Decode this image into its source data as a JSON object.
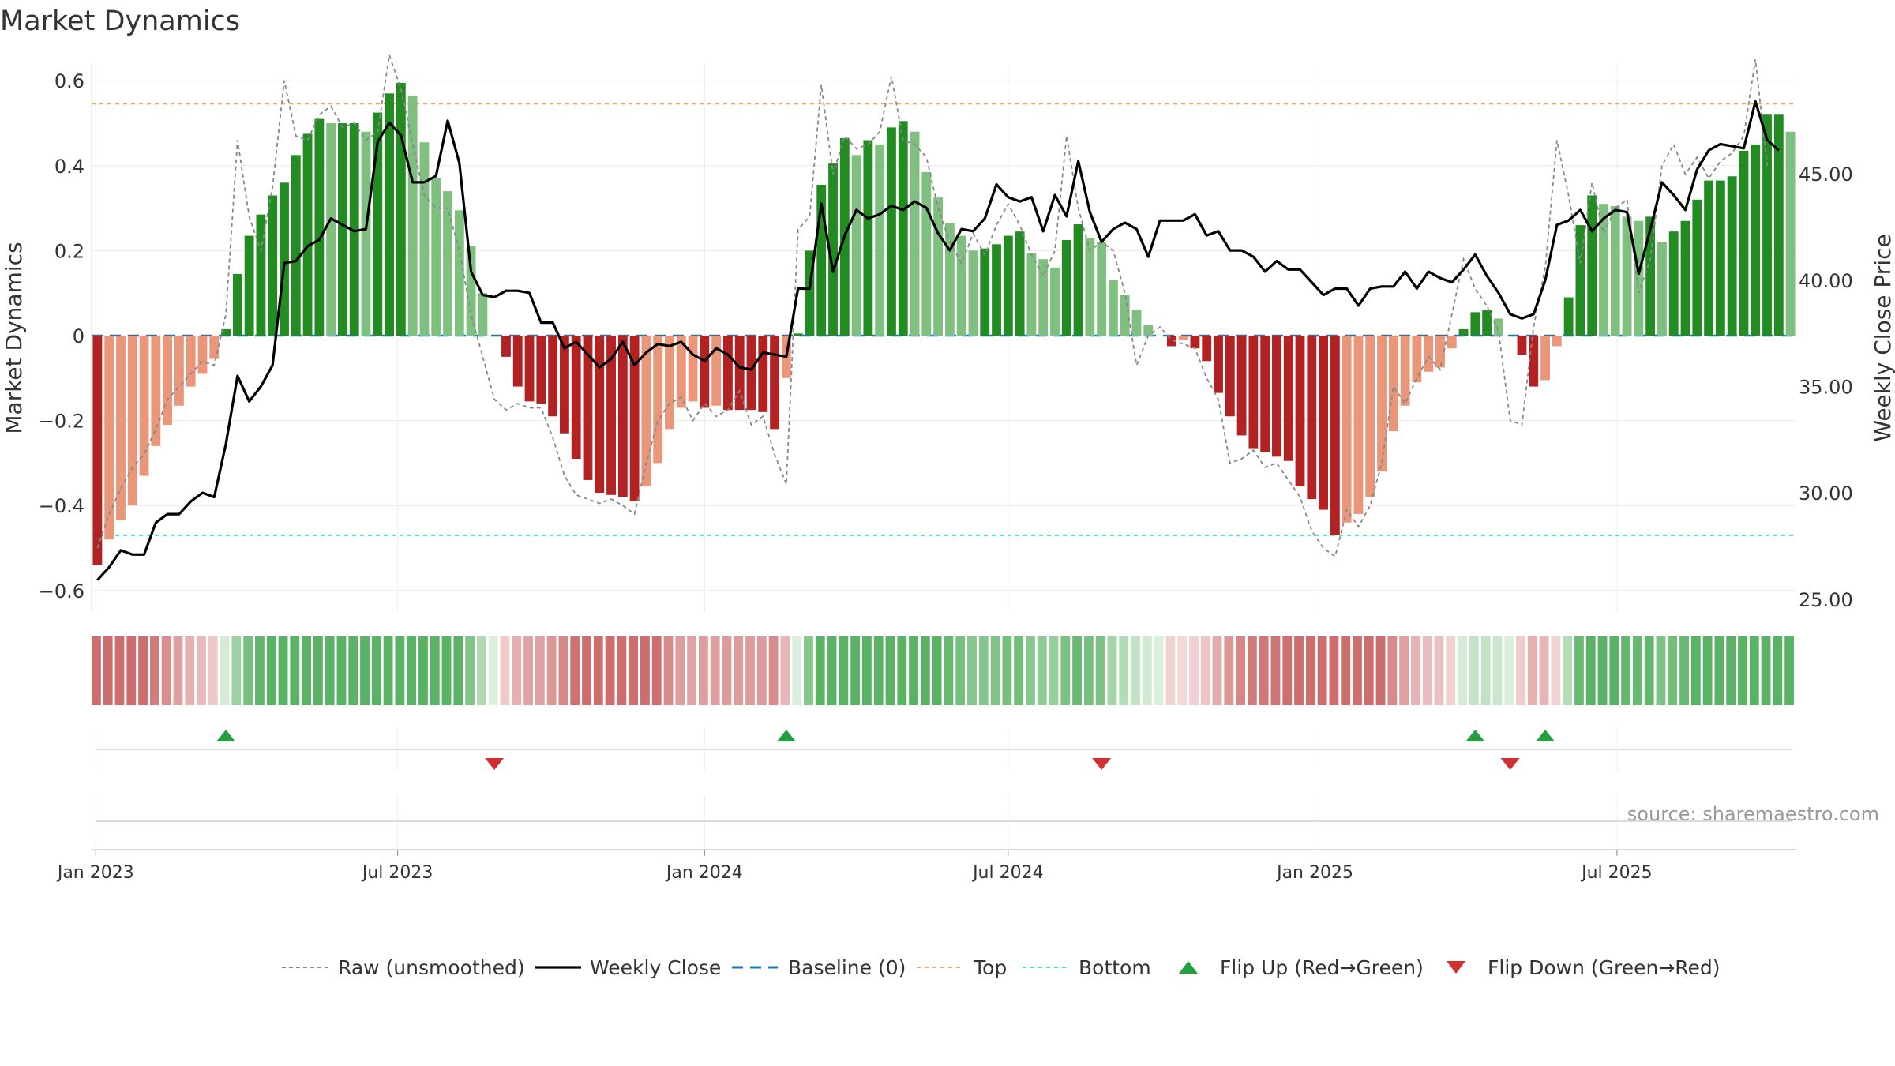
{
  "title": "Market Dynamics",
  "source": "source: sharemaestro.com",
  "chart_data": {
    "type": "bar+line",
    "title": "Market Dynamics",
    "ylabel_left": "Market Dynamics",
    "ylabel_right": "Weekly Close Price",
    "ylim_left": [
      -0.64,
      0.64
    ],
    "ylim_right": [
      24.4,
      50.2
    ],
    "yticks_left": [
      {
        "v": 0.6,
        "label": "0.6"
      },
      {
        "v": 0.4,
        "label": "0.4"
      },
      {
        "v": 0.2,
        "label": "0.2"
      },
      {
        "v": 0,
        "label": "0"
      },
      {
        "v": -0.2,
        "label": "−0.2"
      },
      {
        "v": -0.4,
        "label": "−0.4"
      },
      {
        "v": -0.6,
        "label": "−0.6"
      }
    ],
    "yticks_right": [
      {
        "v": 45,
        "label": "45.00"
      },
      {
        "v": 40,
        "label": "40.00"
      },
      {
        "v": 35,
        "label": "35.00"
      },
      {
        "v": 30,
        "label": "30.00"
      },
      {
        "v": 25,
        "label": "25.00"
      }
    ],
    "x_start": "2023-01-02",
    "x_ticks": [
      {
        "date": "2023-01-01",
        "label": "Jan 2023"
      },
      {
        "date": "2023-07-01",
        "label": "Jul 2023"
      },
      {
        "date": "2024-01-01",
        "label": "Jan 2024"
      },
      {
        "date": "2024-07-01",
        "label": "Jul 2024"
      },
      {
        "date": "2025-01-01",
        "label": "Jan 2025"
      },
      {
        "date": "2025-07-01",
        "label": "Jul 2025"
      }
    ],
    "top_threshold": 0.546,
    "bottom_threshold": -0.47,
    "baseline": 0,
    "colors": {
      "strong_up": "#228b22",
      "weak_up": "#7fbf7f",
      "strong_down": "#b22222",
      "weak_down": "#e9967a",
      "close": "#000000",
      "raw": "#888888",
      "baseline": "#1f77b4",
      "top": "#f4a460",
      "bottom": "#40e0d0",
      "flip_up": "#22a040",
      "flip_down": "#d03030"
    },
    "smoothed": [
      -0.54,
      -0.48,
      -0.435,
      -0.4,
      -0.33,
      -0.26,
      -0.21,
      -0.165,
      -0.12,
      -0.09,
      -0.055,
      0.015,
      0.145,
      0.235,
      0.285,
      0.33,
      0.36,
      0.425,
      0.475,
      0.51,
      0.5,
      0.5,
      0.5,
      0.48,
      0.525,
      0.57,
      0.595,
      0.565,
      0.455,
      0.37,
      0.34,
      0.295,
      0.21,
      0.1,
      0,
      -0.05,
      -0.12,
      -0.155,
      -0.16,
      -0.19,
      -0.23,
      -0.29,
      -0.34,
      -0.37,
      -0.375,
      -0.38,
      -0.39,
      -0.355,
      -0.3,
      -0.22,
      -0.17,
      -0.155,
      -0.17,
      -0.165,
      -0.175,
      -0.175,
      -0.175,
      -0.18,
      -0.22,
      -0.1,
      0.005,
      0.2,
      0.355,
      0.405,
      0.465,
      0.425,
      0.46,
      0.45,
      0.49,
      0.505,
      0.48,
      0.385,
      0.325,
      0.265,
      0.235,
      0.2,
      0.205,
      0.215,
      0.235,
      0.245,
      0.195,
      0.18,
      0.16,
      0.225,
      0.262,
      0.23,
      0.22,
      0.13,
      0.095,
      0.06,
      0.025,
      0,
      -0.025,
      -0.01,
      -0.03,
      -0.06,
      -0.135,
      -0.19,
      -0.235,
      -0.265,
      -0.275,
      -0.285,
      -0.295,
      -0.355,
      -0.385,
      -0.41,
      -0.47,
      -0.44,
      -0.42,
      -0.38,
      -0.32,
      -0.225,
      -0.165,
      -0.11,
      -0.085,
      -0.075,
      -0.03,
      0.015,
      0.055,
      0.06,
      0.04,
      0,
      -0.045,
      -0.12,
      -0.105,
      -0.025,
      0.09,
      0.26,
      0.33,
      0.31,
      0.305,
      0.28,
      0.27,
      0.28,
      0.22,
      0.245,
      0.27,
      0.32,
      0.365,
      0.365,
      0.375,
      0.435,
      0.45,
      0.52,
      0.52,
      0.48
    ],
    "raw": [
      -0.5,
      -0.42,
      -0.36,
      -0.31,
      -0.28,
      -0.22,
      -0.15,
      -0.12,
      -0.09,
      -0.06,
      -0.07,
      0.05,
      0.46,
      0.28,
      0.2,
      0.35,
      0.6,
      0.47,
      0.46,
      0.52,
      0.54,
      0.49,
      0.5,
      0.46,
      0.48,
      0.66,
      0.58,
      0.45,
      0.33,
      0.3,
      0.3,
      0.2,
      0.05,
      -0.05,
      -0.15,
      -0.175,
      -0.16,
      -0.17,
      -0.17,
      -0.24,
      -0.33,
      -0.375,
      -0.385,
      -0.395,
      -0.385,
      -0.4,
      -0.42,
      -0.3,
      -0.2,
      -0.16,
      -0.145,
      -0.2,
      -0.16,
      -0.19,
      -0.175,
      -0.13,
      -0.21,
      -0.19,
      -0.28,
      -0.35,
      0.25,
      0.28,
      0.59,
      0.38,
      0.47,
      0.44,
      0.45,
      0.48,
      0.61,
      0.46,
      0.45,
      0.42,
      0.3,
      0.22,
      0.17,
      0.24,
      0.19,
      0.26,
      0.31,
      0.26,
      0.19,
      0.14,
      0.2,
      0.47,
      0.3,
      0.2,
      0.22,
      0.2,
      0.1,
      -0.07,
      0,
      0.02,
      -0.01,
      -0.02,
      -0.03,
      -0.1,
      -0.15,
      -0.3,
      -0.29,
      -0.27,
      -0.31,
      -0.3,
      -0.34,
      -0.38,
      -0.46,
      -0.5,
      -0.52,
      -0.41,
      -0.45,
      -0.4,
      -0.3,
      -0.12,
      -0.16,
      -0.1,
      -0.05,
      -0.08,
      0.05,
      0.18,
      0.11,
      0.07,
      0.01,
      -0.2,
      -0.21,
      0.02,
      0.16,
      0.46,
      0.33,
      0.17,
      0.36,
      0.24,
      0.3,
      0.32,
      0.1,
      0.18,
      0.4,
      0.45,
      0.38,
      0.42,
      0.37,
      0.41,
      0.43,
      0.47,
      0.65,
      0.4
    ],
    "close": [
      25.9,
      26.5,
      27.3,
      27.1,
      27.1,
      28.6,
      29.0,
      29.0,
      29.6,
      30.0,
      29.8,
      32.3,
      35.5,
      34.3,
      35.0,
      36.0,
      40.8,
      40.9,
      41.6,
      41.9,
      42.9,
      42.6,
      42.3,
      42.4,
      46.5,
      47.4,
      46.8,
      44.6,
      44.6,
      44.9,
      47.5,
      45.5,
      40.4,
      39.3,
      39.2,
      39.5,
      39.5,
      39.4,
      38.0,
      38.0,
      36.8,
      37.1,
      36.5,
      35.9,
      36.3,
      37.1,
      36.0,
      36.6,
      37.0,
      36.9,
      37.1,
      36.5,
      36.2,
      36.8,
      36.5,
      35.9,
      35.8,
      36.6,
      36.5,
      36.4,
      39.6,
      39.6,
      43.6,
      40.4,
      42.1,
      43.3,
      42.9,
      43.1,
      43.5,
      43.3,
      43.7,
      43.4,
      42.2,
      41.4,
      42.4,
      42.3,
      42.9,
      44.5,
      43.9,
      43.7,
      43.9,
      42.3,
      44.0,
      43.0,
      45.6,
      43.2,
      41.8,
      42.4,
      42.7,
      42.4,
      41.1,
      42.8,
      42.8,
      42.8,
      43.1,
      42.1,
      42.3,
      41.4,
      41.4,
      41.1,
      40.4,
      40.9,
      40.5,
      40.5,
      39.9,
      39.3,
      39.6,
      39.6,
      38.8,
      39.6,
      39.7,
      39.7,
      40.4,
      39.6,
      40.4,
      40.1,
      39.9,
      40.5,
      41.2,
      40.2,
      39.4,
      38.4,
      38.2,
      38.4,
      40.0,
      42.6,
      42.8,
      43.3,
      42.3,
      42.9,
      43.3,
      43.2,
      40.3,
      42.4,
      44.6,
      44.0,
      43.3,
      45.2,
      46.1,
      46.4,
      46.3,
      46.2,
      48.4,
      46.6,
      46.1
    ],
    "flip_up": [
      "2023-03-20",
      "2024-02-19",
      "2025-04-07",
      "2025-05-19"
    ],
    "flip_down": [
      "2023-08-28",
      "2024-08-26",
      "2025-04-28"
    ],
    "legend": [
      {
        "key": "raw",
        "label": "Raw (unsmoothed)"
      },
      {
        "key": "close",
        "label": "Weekly Close"
      },
      {
        "key": "baseline",
        "label": "Baseline (0)"
      },
      {
        "key": "top",
        "label": "Top"
      },
      {
        "key": "bottom",
        "label": "Bottom"
      },
      {
        "key": "flip_up",
        "label": "Flip Up (Red→Green)"
      },
      {
        "key": "flip_down",
        "label": "Flip Down (Green→Red)"
      }
    ]
  }
}
